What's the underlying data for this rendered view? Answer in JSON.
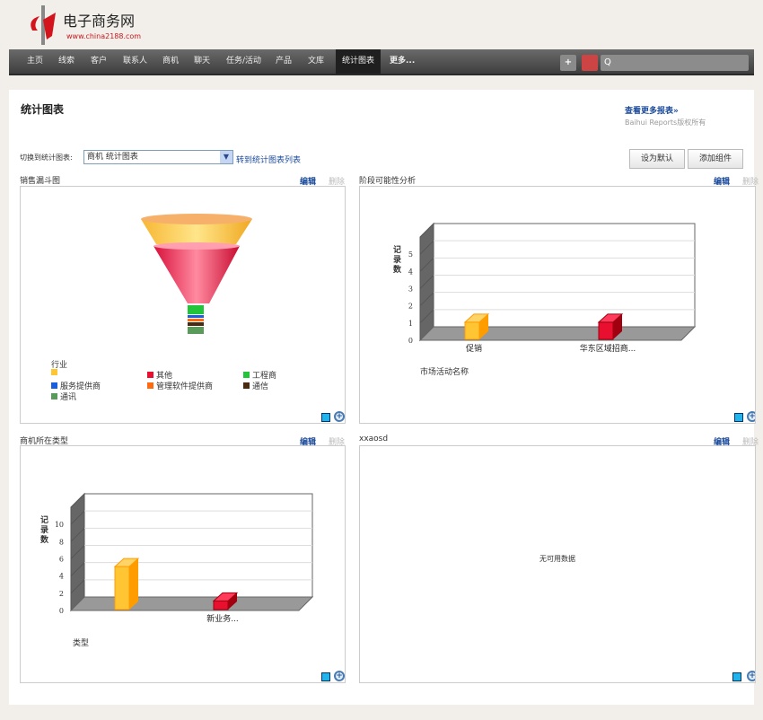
{
  "logo": {
    "brand": "电子商务网",
    "url": "www.china2188.com",
    "mark": "中华"
  },
  "nav": {
    "items": [
      "主页",
      "线索",
      "客户",
      "联系人",
      "商机",
      "聊天",
      "任务/活动",
      "产品",
      "文库",
      "统计图表",
      "更多..."
    ],
    "active": "统计图表",
    "add_icon": "+",
    "search_icon": "Q"
  },
  "page": {
    "title": "统计图表",
    "more_reports": "查看更多报表»",
    "copyright": "Baihui Reports版权所有",
    "switch_label": "切换到统计图表:",
    "switch_value": "商机  统计图表",
    "goto_list": "转到统计图表列表",
    "set_default": "设为默认",
    "add_widget": "添加组件",
    "edit": "编辑",
    "delete": "删除"
  },
  "panels": {
    "funnel": {
      "title": "销售漏斗图",
      "legend_title": "行业",
      "legend": [
        {
          "label": "",
          "color": "#ffc533"
        },
        {
          "label": "其他",
          "color": "#e8102e"
        },
        {
          "label": "工程商",
          "color": "#22c43a"
        },
        {
          "label": "服务提供商",
          "color": "#1a5fe0"
        },
        {
          "label": "管理软件提供商",
          "color": "#ff6a10"
        },
        {
          "label": "通信",
          "color": "#4a2a10"
        },
        {
          "label": "通讯",
          "color": "#5a9a5a"
        }
      ]
    },
    "stage": {
      "title": "阶段可能性分析"
    },
    "type": {
      "title": "商机所在类型"
    },
    "xxaosd": {
      "title": "xxaosd",
      "no_data": "无可用数据"
    }
  },
  "chart_data": [
    {
      "type": "bar",
      "title": "销售漏斗图",
      "subtype": "funnel",
      "legend_title": "行业"
    },
    {
      "type": "bar",
      "ylabel": "记录数",
      "xlabel": "市场活动名称",
      "categories": [
        "促销",
        "华东区域招商..."
      ],
      "values": [
        1,
        1
      ],
      "colors": [
        "#ffc533",
        "#e8102e"
      ],
      "ylim": [
        0,
        6
      ],
      "yticks": [
        0,
        1,
        2,
        3,
        4,
        5
      ],
      "grid": true
    },
    {
      "type": "bar",
      "ylabel": "记录数",
      "xlabel": "类型",
      "categories": [
        "",
        "新业务..."
      ],
      "values": [
        5,
        1
      ],
      "colors": [
        "#ffc533",
        "#e8102e"
      ],
      "ylim": [
        0,
        12
      ],
      "yticks": [
        0,
        2,
        4,
        6,
        8,
        10
      ],
      "grid": true
    }
  ]
}
